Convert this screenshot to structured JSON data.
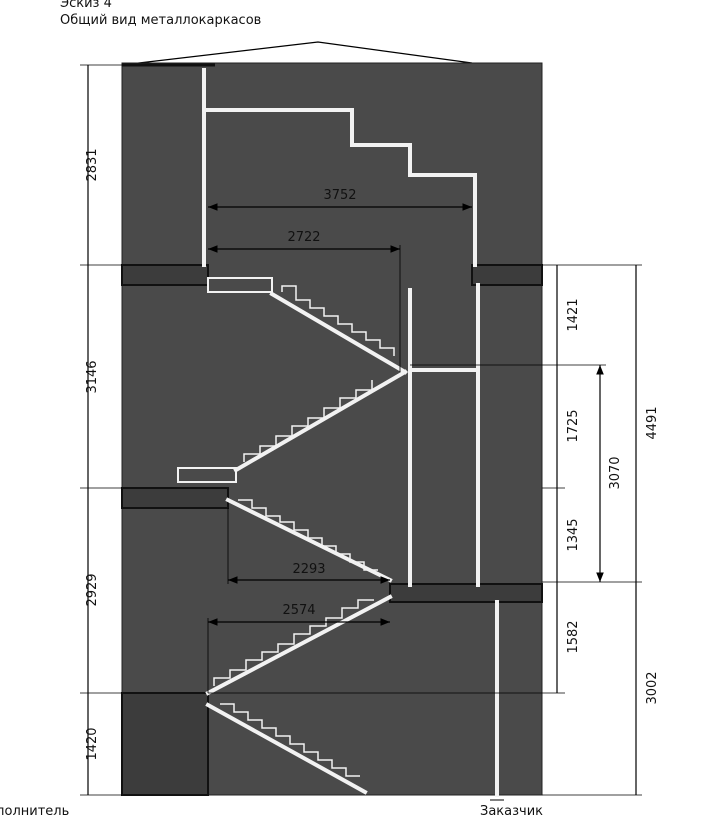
{
  "header": {
    "title": "Эскиз 4",
    "subtitle": "Общий вид  металлокаркасов"
  },
  "dimensions": {
    "left": [
      2831,
      3146,
      2929,
      1420
    ],
    "inner": [
      3752,
      2722,
      2293,
      2574
    ],
    "right_chain": [
      1421,
      1725,
      1345,
      1582
    ],
    "right_mid": [
      3070
    ],
    "right_outer": [
      4491,
      3002
    ]
  },
  "footer": {
    "left": "полнитель",
    "right": "Заказчик"
  }
}
